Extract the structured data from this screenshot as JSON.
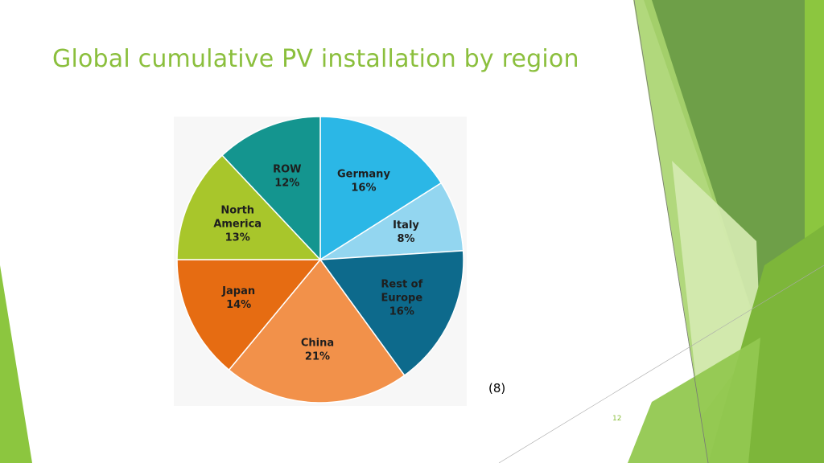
{
  "slide": {
    "title": "Global cumulative PV installation by region",
    "citation": "(8)",
    "page_number": "12"
  },
  "theme": {
    "title_color": "#8bbf3d",
    "accent_green": "#7cba2f",
    "accent_green_dark": "#4e8a2a"
  },
  "chart_data": {
    "type": "pie",
    "title": "",
    "start_angle_deg": 0,
    "direction": "clockwise",
    "slices": [
      {
        "label_lines": [
          "Germany",
          "16%"
        ],
        "name": "Germany",
        "value": 16,
        "color": "#2bb7e6"
      },
      {
        "label_lines": [
          "Italy",
          "8%"
        ],
        "name": "Italy",
        "value": 8,
        "color": "#93d6f0"
      },
      {
        "label_lines": [
          "Rest of",
          "Europe",
          "16%"
        ],
        "name": "Rest of Europe",
        "value": 16,
        "color": "#0d6a8c"
      },
      {
        "label_lines": [
          "China",
          "21%"
        ],
        "name": "China",
        "value": 21,
        "color": "#f2914a"
      },
      {
        "label_lines": [
          "Japan",
          "14%"
        ],
        "name": "Japan",
        "value": 14,
        "color": "#e66c12"
      },
      {
        "label_lines": [
          "North",
          "America",
          "13%"
        ],
        "name": "North America",
        "value": 13,
        "color": "#a8c62b"
      },
      {
        "label_lines": [
          "ROW",
          "12%"
        ],
        "name": "ROW",
        "value": 12,
        "color": "#14958f"
      }
    ]
  }
}
